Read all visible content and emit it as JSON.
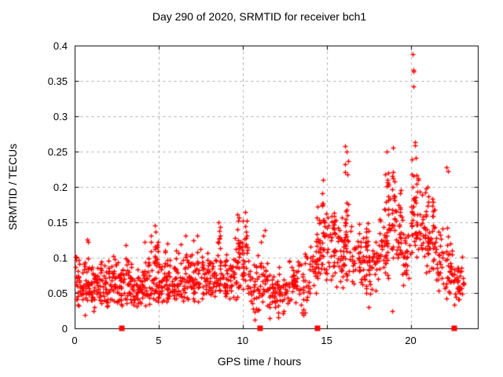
{
  "window": {
    "background": "#ffffff"
  },
  "chart_data": {
    "type": "scatter",
    "title": "Day 290 of 2020, SRMTID for receiver bch1",
    "xlabel": "GPS time / hours",
    "ylabel": "SRMTID / TECUs",
    "xlim": [
      0,
      24
    ],
    "ylim": [
      0,
      0.4
    ],
    "xticks": [
      0,
      5,
      10,
      15,
      20
    ],
    "xtick_labels": [
      "0",
      "5",
      "10",
      "15",
      "20"
    ],
    "yticks": [
      0,
      0.05,
      0.1,
      0.15,
      0.2,
      0.25,
      0.3,
      0.35,
      0.4
    ],
    "ytick_labels": [
      "0",
      "0.05",
      "0.1",
      "0.15",
      "0.2",
      "0.25",
      "0.3",
      "0.35",
      "0.4"
    ],
    "grid": true,
    "legend": "none",
    "border_color": "#000000",
    "grid_color": "#aaaaaa",
    "marker": {
      "shape": "plus",
      "color": "#ff0000",
      "size": 7
    },
    "baseline_squares": {
      "shape": "filled-square",
      "color": "#ff0000",
      "size": 7,
      "y": 0,
      "x_hours": [
        2.76,
        10.98,
        14.42,
        22.57
      ]
    },
    "outlier_points": [
      [
        0.05,
        0.101
      ],
      [
        0.62,
        0.019
      ],
      [
        0.75,
        0.126
      ],
      [
        0.78,
        0.122
      ],
      [
        1.1,
        0.024
      ],
      [
        3.05,
        0.118
      ],
      [
        4.78,
        0.146
      ],
      [
        4.82,
        0.137
      ],
      [
        5.5,
        0.12
      ],
      [
        6.6,
        0.131
      ],
      [
        7.3,
        0.131
      ],
      [
        8.55,
        0.15
      ],
      [
        9.7,
        0.161
      ],
      [
        10.15,
        0.165
      ],
      [
        10.7,
        0.012
      ],
      [
        11.3,
        0.139
      ],
      [
        11.6,
        0.014
      ],
      [
        12.1,
        0.016
      ],
      [
        13.6,
        0.019
      ],
      [
        14.8,
        0.21
      ],
      [
        16.1,
        0.258
      ],
      [
        16.2,
        0.25
      ],
      [
        17.5,
        0.03
      ],
      [
        18.55,
        0.25
      ],
      [
        18.9,
        0.025
      ],
      [
        18.95,
        0.256
      ],
      [
        20.12,
        0.388
      ],
      [
        20.16,
        0.366
      ],
      [
        20.18,
        0.363
      ],
      [
        20.15,
        0.342
      ],
      [
        20.25,
        0.263
      ],
      [
        20.28,
        0.259
      ],
      [
        22.15,
        0.228
      ],
      [
        22.2,
        0.222
      ],
      [
        22.6,
        0.033
      ],
      [
        23.05,
        0.101
      ]
    ],
    "noise_bands": {
      "seed": 290,
      "format": "[x_start_hours, x_end_hours, count, y_min_TECUs, y_max_TECUs, skew_power]",
      "bands": [
        [
          0.05,
          0.5,
          36,
          0.032,
          0.106,
          1.4
        ],
        [
          0.5,
          1.0,
          36,
          0.028,
          0.112,
          1.4
        ],
        [
          1.0,
          1.5,
          34,
          0.03,
          0.1,
          1.4
        ],
        [
          1.5,
          2.0,
          34,
          0.03,
          0.1,
          1.4
        ],
        [
          2.0,
          2.5,
          34,
          0.033,
          0.106,
          1.4
        ],
        [
          2.5,
          3.0,
          34,
          0.03,
          0.104,
          1.4
        ],
        [
          3.0,
          3.5,
          34,
          0.03,
          0.118,
          1.4
        ],
        [
          3.5,
          4.0,
          34,
          0.026,
          0.102,
          1.4
        ],
        [
          4.0,
          4.5,
          34,
          0.03,
          0.124,
          1.4
        ],
        [
          4.5,
          5.0,
          34,
          0.03,
          0.135,
          1.4
        ],
        [
          5.0,
          5.5,
          34,
          0.034,
          0.12,
          1.4
        ],
        [
          5.5,
          6.0,
          34,
          0.03,
          0.108,
          1.4
        ],
        [
          6.0,
          6.5,
          34,
          0.03,
          0.126,
          1.4
        ],
        [
          6.5,
          7.0,
          32,
          0.034,
          0.13,
          1.4
        ],
        [
          7.0,
          7.5,
          32,
          0.038,
          0.132,
          1.4
        ],
        [
          7.5,
          8.0,
          32,
          0.04,
          0.126,
          1.4
        ],
        [
          8.0,
          8.5,
          32,
          0.04,
          0.132,
          1.4
        ],
        [
          8.5,
          9.0,
          30,
          0.04,
          0.148,
          1.4
        ],
        [
          9.0,
          9.5,
          30,
          0.036,
          0.122,
          1.4
        ],
        [
          9.5,
          10.0,
          30,
          0.04,
          0.155,
          1.4
        ],
        [
          10.0,
          10.5,
          28,
          0.03,
          0.16,
          1.4
        ],
        [
          10.5,
          11.0,
          26,
          0.02,
          0.12,
          1.3
        ],
        [
          11.0,
          11.5,
          28,
          0.03,
          0.14,
          1.4
        ],
        [
          11.5,
          12.0,
          26,
          0.016,
          0.112,
          1.3
        ],
        [
          12.0,
          12.5,
          26,
          0.02,
          0.1,
          1.3
        ],
        [
          12.5,
          13.0,
          26,
          0.028,
          0.104,
          1.4
        ],
        [
          13.0,
          13.5,
          26,
          0.028,
          0.11,
          1.4
        ],
        [
          13.5,
          14.0,
          26,
          0.02,
          0.122,
          1.3
        ],
        [
          14.0,
          14.5,
          24,
          0.048,
          0.15,
          1.3
        ],
        [
          14.5,
          15.0,
          26,
          0.055,
          0.185,
          1.3
        ],
        [
          15.0,
          15.5,
          26,
          0.065,
          0.19,
          1.3
        ],
        [
          15.5,
          16.0,
          28,
          0.05,
          0.17,
          1.3
        ],
        [
          16.0,
          16.5,
          28,
          0.055,
          0.205,
          1.3
        ],
        [
          16.5,
          17.0,
          28,
          0.048,
          0.168,
          1.3
        ],
        [
          17.0,
          17.5,
          28,
          0.04,
          0.15,
          1.3
        ],
        [
          17.5,
          18.0,
          28,
          0.045,
          0.158,
          1.3
        ],
        [
          18.0,
          18.5,
          28,
          0.055,
          0.19,
          1.3
        ],
        [
          18.5,
          19.0,
          28,
          0.07,
          0.225,
          1.3
        ],
        [
          19.0,
          19.5,
          28,
          0.065,
          0.205,
          1.3
        ],
        [
          19.5,
          20.0,
          28,
          0.055,
          0.16,
          1.3
        ],
        [
          20.0,
          20.5,
          28,
          0.085,
          0.235,
          1.2
        ],
        [
          20.5,
          21.0,
          28,
          0.075,
          0.215,
          1.3
        ],
        [
          21.0,
          21.5,
          28,
          0.075,
          0.195,
          1.3
        ],
        [
          21.5,
          22.0,
          26,
          0.05,
          0.15,
          1.3
        ],
        [
          22.0,
          22.5,
          26,
          0.04,
          0.13,
          1.3
        ],
        [
          22.5,
          23.0,
          32,
          0.028,
          0.098,
          1.3
        ],
        [
          23.0,
          23.15,
          8,
          0.035,
          0.1,
          1.2
        ],
        [
          4.72,
          4.95,
          8,
          0.08,
          0.146,
          1.1
        ],
        [
          8.52,
          8.66,
          8,
          0.085,
          0.15,
          1.1
        ],
        [
          9.66,
          9.82,
          7,
          0.09,
          0.16,
          1.1
        ],
        [
          10.12,
          10.28,
          8,
          0.08,
          0.164,
          1.1
        ],
        [
          14.35,
          14.55,
          10,
          0.075,
          0.185,
          1.1
        ],
        [
          14.72,
          14.92,
          12,
          0.08,
          0.208,
          1.1
        ],
        [
          15.28,
          15.52,
          12,
          0.09,
          0.205,
          1.1
        ],
        [
          16.06,
          16.3,
          12,
          0.095,
          0.255,
          1.1
        ],
        [
          17.35,
          17.52,
          6,
          0.08,
          0.168,
          1.1
        ],
        [
          18.45,
          18.7,
          14,
          0.1,
          0.248,
          1.1
        ],
        [
          18.88,
          19.06,
          10,
          0.1,
          0.255,
          1.1
        ],
        [
          19.3,
          19.5,
          6,
          0.09,
          0.18,
          1.1
        ],
        [
          20.08,
          20.45,
          16,
          0.12,
          0.258,
          1.1
        ],
        [
          20.72,
          21.1,
          12,
          0.1,
          0.215,
          1.1
        ],
        [
          21.1,
          21.45,
          8,
          0.1,
          0.19,
          1.1
        ],
        [
          22.1,
          22.3,
          6,
          0.06,
          0.2,
          1.2
        ]
      ]
    }
  }
}
